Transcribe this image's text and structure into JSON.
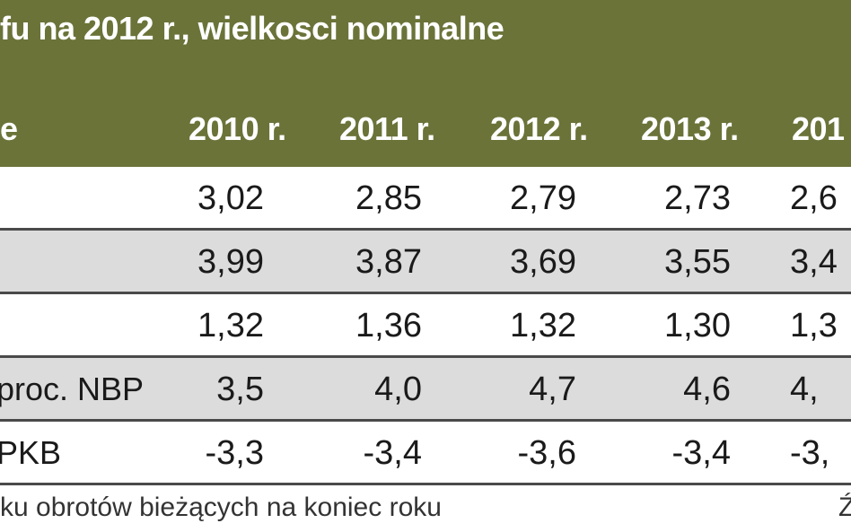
{
  "header": {
    "title": "fu na 2012 r.,  wielkosci nominalne",
    "col_label": "e",
    "years": [
      "2010 r.",
      "2011 r.",
      "2012 r.",
      "2013 r.",
      "201"
    ]
  },
  "rows": [
    {
      "label": "",
      "values": [
        "3,02",
        "2,85",
        "2,79",
        "2,73",
        "2,6"
      ]
    },
    {
      "label": "",
      "values": [
        "3,99",
        "3,87",
        "3,69",
        "3,55",
        "3,4"
      ]
    },
    {
      "label": "",
      "values": [
        "1,32",
        "1,36",
        "1,32",
        "1,30",
        "1,3"
      ]
    },
    {
      "label": " proc. NBP",
      "values": [
        "3,5",
        "4,0",
        "4,7",
        "4,6",
        "4,"
      ]
    },
    {
      "label": "PKB",
      "values": [
        "-3,3",
        "-3,4",
        "-3,6",
        "-3,4",
        "-3,"
      ]
    }
  ],
  "footnote": "ku obrotów bieżących na koniec roku",
  "corner_text": "Ź",
  "colors": {
    "header_bg": "#6b7339",
    "shade": "#dcdcdc"
  }
}
